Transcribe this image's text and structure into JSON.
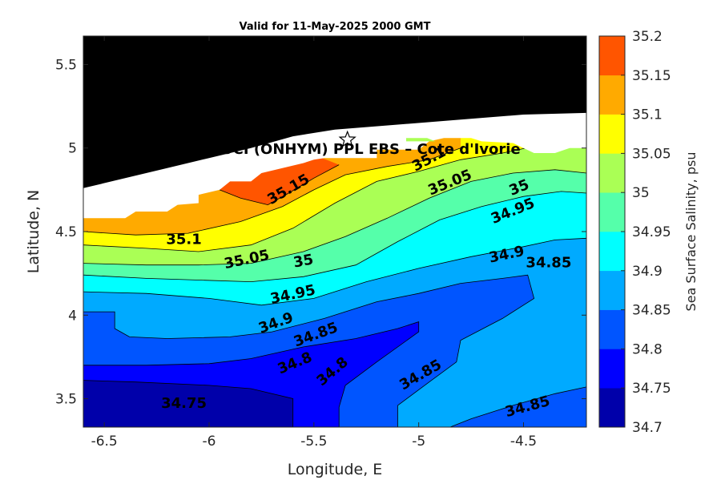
{
  "chart_data": {
    "type": "contourf",
    "title": "Valid for 11-May-2025 2000 GMT",
    "xlabel": "Longitude, E",
    "ylabel": "Latitude, N",
    "xlim": [
      -6.6,
      -4.2
    ],
    "ylim": [
      3.33,
      5.67
    ],
    "xticks": [
      -6.5,
      -6,
      -5.5,
      -5,
      -4.5
    ],
    "xtick_labels": [
      "-6.5",
      "-6",
      "-5.5",
      "-5",
      "-4.5"
    ],
    "yticks": [
      3.5,
      4,
      4.5,
      5,
      5.5
    ],
    "ytick_labels": [
      "3.5",
      "4",
      "4.5",
      "5",
      "5.5"
    ],
    "colorbar": {
      "label": "Sea Surface Salinity, psu",
      "levels": [
        34.7,
        34.75,
        34.8,
        34.85,
        34.9,
        34.95,
        35,
        35.05,
        35.1,
        35.15,
        35.2
      ],
      "level_labels": [
        "34.7",
        "34.75",
        "34.8",
        "34.85",
        "34.9",
        "34.95",
        "35",
        "35.05",
        "35.1",
        "35.15",
        "35.2"
      ],
      "colors": [
        "#0000aa",
        "#0000ff",
        "#0055ff",
        "#00aaff",
        "#00ffff",
        "#55ffaa",
        "#aaff55",
        "#ffff00",
        "#ffaa00",
        "#ff5500"
      ]
    },
    "land_color": "#000000",
    "nodata_color": "#ffffff",
    "contour_lines": [
      {
        "level": 34.75,
        "points": [
          [
            -6.6,
            3.61
          ],
          [
            -6.35,
            3.6
          ],
          [
            -6.0,
            3.58
          ],
          [
            -5.8,
            3.56
          ],
          [
            -5.6,
            3.5
          ],
          [
            -5.6,
            3.33
          ]
        ]
      },
      {
        "level": 34.8,
        "points": [
          [
            -6.6,
            3.7
          ],
          [
            -6.3,
            3.7
          ],
          [
            -6.0,
            3.71
          ],
          [
            -5.8,
            3.74
          ],
          [
            -5.55,
            3.81
          ],
          [
            -5.3,
            3.86
          ],
          [
            -5.1,
            3.92
          ],
          [
            -5.0,
            3.96
          ],
          [
            -5.0,
            3.9
          ],
          [
            -5.2,
            3.72
          ],
          [
            -5.35,
            3.58
          ],
          [
            -5.38,
            3.45
          ],
          [
            -5.38,
            3.33
          ]
        ]
      },
      {
        "level": 34.85,
        "points": [
          [
            -6.6,
            4.02
          ],
          [
            -6.45,
            4.02
          ],
          [
            -6.45,
            3.92
          ],
          [
            -6.38,
            3.87
          ],
          [
            -6.2,
            3.86
          ],
          [
            -5.9,
            3.87
          ],
          [
            -5.7,
            3.9
          ],
          [
            -5.45,
            3.98
          ],
          [
            -5.2,
            4.08
          ],
          [
            -5.0,
            4.13
          ],
          [
            -4.8,
            4.19
          ],
          [
            -4.6,
            4.22
          ],
          [
            -4.48,
            4.24
          ],
          [
            -4.45,
            4.1
          ],
          [
            -4.6,
            3.98
          ],
          [
            -4.8,
            3.85
          ],
          [
            -4.82,
            3.72
          ],
          [
            -4.95,
            3.6
          ],
          [
            -5.1,
            3.46
          ],
          [
            -5.1,
            3.33
          ]
        ]
      },
      {
        "level": 34.85,
        "points": [
          [
            -4.2,
            3.57
          ],
          [
            -4.35,
            3.53
          ],
          [
            -4.55,
            3.46
          ],
          [
            -4.75,
            3.38
          ],
          [
            -4.85,
            3.33
          ]
        ]
      },
      {
        "level": 34.9,
        "points": [
          [
            -6.6,
            4.14
          ],
          [
            -6.3,
            4.13
          ],
          [
            -6.0,
            4.1
          ],
          [
            -5.75,
            4.06
          ],
          [
            -5.5,
            4.1
          ],
          [
            -5.25,
            4.2
          ],
          [
            -5.0,
            4.28
          ],
          [
            -4.75,
            4.35
          ],
          [
            -4.5,
            4.41
          ],
          [
            -4.35,
            4.45
          ],
          [
            -4.2,
            4.46
          ]
        ]
      },
      {
        "level": 34.95,
        "points": [
          [
            -6.6,
            4.24
          ],
          [
            -6.3,
            4.22
          ],
          [
            -6.05,
            4.21
          ],
          [
            -5.8,
            4.2
          ],
          [
            -5.55,
            4.23
          ],
          [
            -5.3,
            4.3
          ],
          [
            -5.1,
            4.44
          ],
          [
            -4.9,
            4.57
          ],
          [
            -4.7,
            4.65
          ],
          [
            -4.5,
            4.71
          ],
          [
            -4.32,
            4.74
          ],
          [
            -4.2,
            4.73
          ]
        ]
      },
      {
        "level": 35.0,
        "points": [
          [
            -6.6,
            4.31
          ],
          [
            -6.3,
            4.3
          ],
          [
            -6.05,
            4.3
          ],
          [
            -5.8,
            4.31
          ],
          [
            -5.55,
            4.38
          ],
          [
            -5.35,
            4.47
          ],
          [
            -5.15,
            4.58
          ],
          [
            -4.95,
            4.7
          ],
          [
            -4.75,
            4.8
          ],
          [
            -4.55,
            4.85
          ],
          [
            -4.35,
            4.87
          ],
          [
            -4.2,
            4.85
          ]
        ]
      },
      {
        "level": 35.05,
        "points": [
          [
            -6.6,
            4.42
          ],
          [
            -6.3,
            4.4
          ],
          [
            -6.05,
            4.38
          ],
          [
            -5.8,
            4.42
          ],
          [
            -5.6,
            4.52
          ],
          [
            -5.4,
            4.67
          ],
          [
            -5.2,
            4.8
          ],
          [
            -5.0,
            4.86
          ],
          [
            -4.8,
            4.93
          ],
          [
            -4.6,
            4.97
          ],
          [
            -4.45,
            5.01
          ]
        ]
      },
      {
        "level": 35.1,
        "points": [
          [
            -6.6,
            4.5
          ],
          [
            -6.35,
            4.48
          ],
          [
            -6.1,
            4.49
          ],
          [
            -5.85,
            4.56
          ],
          [
            -5.65,
            4.65
          ],
          [
            -5.5,
            4.75
          ],
          [
            -5.35,
            4.84
          ],
          [
            -5.15,
            4.89
          ],
          [
            -4.95,
            4.93
          ],
          [
            -4.8,
            5.0
          ]
        ]
      },
      {
        "level": 35.15,
        "points": [
          [
            -5.95,
            4.75
          ],
          [
            -5.85,
            4.7
          ],
          [
            -5.72,
            4.66
          ],
          [
            -5.62,
            4.73
          ],
          [
            -5.5,
            4.82
          ],
          [
            -5.38,
            4.9
          ]
        ]
      }
    ],
    "contour_labels": [
      {
        "text": "35.15",
        "x": -5.62,
        "y": 4.75,
        "angle": -30
      },
      {
        "text": "35.1",
        "x": -6.12,
        "y": 4.45,
        "angle": 0
      },
      {
        "text": "35.1",
        "x": -4.95,
        "y": 4.93,
        "angle": -28
      },
      {
        "text": "35.05",
        "x": -4.85,
        "y": 4.79,
        "angle": -22
      },
      {
        "text": "35.05",
        "x": -5.82,
        "y": 4.33,
        "angle": -12
      },
      {
        "text": "35",
        "x": -5.55,
        "y": 4.32,
        "angle": -10
      },
      {
        "text": "35",
        "x": -4.52,
        "y": 4.76,
        "angle": -22
      },
      {
        "text": "34.95",
        "x": -5.6,
        "y": 4.12,
        "angle": -12
      },
      {
        "text": "34.95",
        "x": -4.55,
        "y": 4.62,
        "angle": -22
      },
      {
        "text": "34.9",
        "x": -5.68,
        "y": 3.95,
        "angle": -20
      },
      {
        "text": "34.9",
        "x": -4.58,
        "y": 4.36,
        "angle": -12
      },
      {
        "text": "34.85",
        "x": -5.49,
        "y": 3.88,
        "angle": -20
      },
      {
        "text": "34.85",
        "x": -4.38,
        "y": 4.31,
        "angle": 0
      },
      {
        "text": "34.85",
        "x": -4.99,
        "y": 3.64,
        "angle": -30
      },
      {
        "text": "34.85",
        "x": -4.48,
        "y": 3.45,
        "angle": -15
      },
      {
        "text": "34.8",
        "x": -5.59,
        "y": 3.71,
        "angle": -22
      },
      {
        "text": "34.8",
        "x": -5.41,
        "y": 3.66,
        "angle": -40
      },
      {
        "text": "34.75",
        "x": -6.12,
        "y": 3.47,
        "angle": 0
      }
    ],
    "site": {
      "label": "PETROCI (ONHYM) PPL EBS  – Cote d'Ivorie",
      "x": -5.34,
      "y": 5.05
    }
  }
}
